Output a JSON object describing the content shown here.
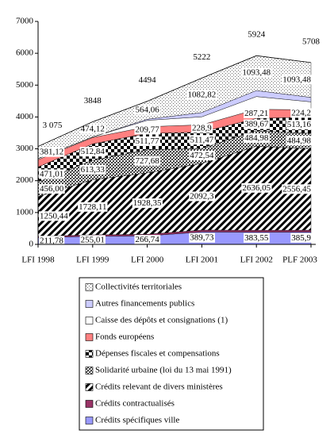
{
  "chart_data": {
    "type": "stacked_area",
    "categories": [
      "LFI 1998",
      "LFI 1999",
      "LFI 2000",
      "LFI 2001",
      "LFI 2002",
      "PLF 2003"
    ],
    "ylim": [
      0,
      7000
    ],
    "yticks": [
      0,
      1000,
      2000,
      3000,
      4000,
      5000,
      6000,
      7000
    ],
    "totals": [
      3075,
      3848,
      4494,
      5222,
      5924,
      5708
    ],
    "total_labels": [
      "3 075",
      "3848",
      "4494",
      "5222",
      "5924",
      "5708"
    ],
    "series": [
      {
        "name": "Crédits spécifiques ville",
        "color": "#9999ff",
        "pattern": "solid",
        "values": [
          211.78,
          255.01,
          266.74,
          389.73,
          383.55,
          385.9
        ],
        "value_labels": [
          "211,78",
          "255,01",
          "266,74",
          "389,73",
          "383,55",
          "385,9"
        ]
      },
      {
        "name": "Crédits contractualisés",
        "color": "#993366",
        "pattern": "solid",
        "values": [
          40,
          45,
          50,
          60,
          60,
          60
        ],
        "value_labels": [
          null,
          null,
          null,
          null,
          null,
          null
        ]
      },
      {
        "name": "Crédits relevant de divers ministères",
        "color": "#000000",
        "pattern": "diagonal",
        "values": [
          1250.44,
          1728.11,
          1928.35,
          2092.3,
          2636.05,
          2556.45
        ],
        "value_labels": [
          "1250,44",
          "1728,11",
          "1928,35",
          "2092,3",
          "2636,05",
          "2556,45"
        ]
      },
      {
        "name": "Solidarité urbaine (loi du 13 mai 1991)",
        "color": "#555555",
        "pattern": "crosshatch",
        "values": [
          456.0,
          613.33,
          727.68,
          472.54,
          484.98,
          484.98
        ],
        "value_labels": [
          "456,00",
          "613,33",
          "727,68",
          "472,54",
          "484,98",
          "484,98"
        ]
      },
      {
        "name": "Dépenses fiscales et compensations",
        "color": "#000000",
        "pattern": "checker",
        "values": [
          471.01,
          512.84,
          511.77,
          511.47,
          389.67,
          513.16
        ],
        "value_labels": [
          "471,01",
          "512,84",
          "511,77",
          "511,47",
          "389,67",
          "513,16"
        ]
      },
      {
        "name": "Fonds européens",
        "color": "#ff8080",
        "pattern": "solid",
        "values": [
          230,
          200,
          209.77,
          228.9,
          287.21,
          224.2
        ],
        "value_labels": [
          null,
          null,
          "209,77",
          "228,9",
          "287,21",
          "224,2"
        ]
      },
      {
        "name": "Caisse des dépôts et consignations (1)",
        "color": "#ffffff",
        "pattern": "solid",
        "values": [
          35,
          20,
          200,
          250,
          400,
          250
        ],
        "value_labels": [
          null,
          null,
          null,
          null,
          null,
          null
        ]
      },
      {
        "name": "Autres financements publics",
        "color": "#ccccff",
        "pattern": "solid",
        "values": [
          0,
          0,
          36,
          134,
          189,
          140
        ],
        "value_labels": [
          null,
          null,
          null,
          null,
          null,
          null
        ]
      },
      {
        "name": "Collectivités territoriales",
        "color": "#888888",
        "pattern": "dots",
        "values": [
          381.12,
          474.12,
          564.06,
          1082.82,
          1093.48,
          1093.48
        ],
        "value_labels": [
          "381,12",
          "474,12",
          "564,06",
          "1082,82",
          "1093,48",
          "1093,48"
        ]
      }
    ]
  }
}
